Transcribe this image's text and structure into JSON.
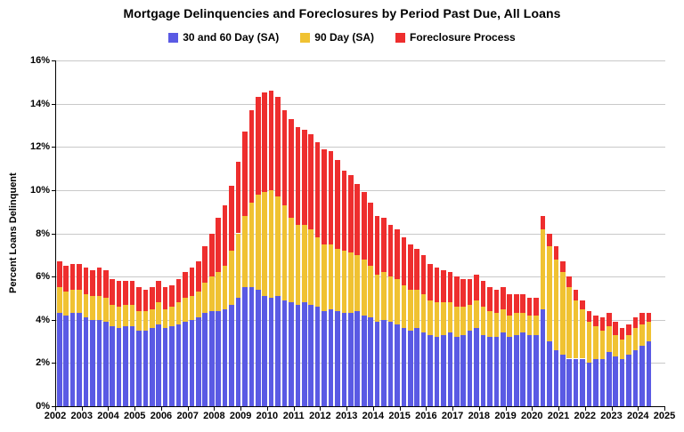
{
  "chart_data": {
    "type": "bar",
    "stacked": true,
    "title": "Mortgage Delinquencies and Foreclosures by Period Past Due, All Loans",
    "ylabel": "Percent Loans Delinquent",
    "ylim": [
      0,
      16
    ],
    "yticks": [
      0,
      2,
      4,
      6,
      8,
      10,
      12,
      14,
      16
    ],
    "ytick_suffix": "%",
    "xticks": [
      2002,
      2003,
      2004,
      2005,
      2006,
      2007,
      2008,
      2009,
      2010,
      2011,
      2012,
      2013,
      2014,
      2015,
      2016,
      2017,
      2018,
      2019,
      2020,
      2021,
      2022,
      2023,
      2024,
      2025
    ],
    "x_start_year": 2002,
    "x_axis_end_year": 2025,
    "frequency": "quarterly",
    "grid": true,
    "legend_position": "top",
    "colors": {
      "blue": "#5a5ae4",
      "yellow": "#f0c232",
      "red": "#ee2e2e",
      "gridline": "#c9c9c9",
      "axis": "#000000"
    },
    "series": [
      {
        "name": "30 and 60 Day (SA)",
        "color": "#5a5ae4",
        "values": [
          4.3,
          4.2,
          4.3,
          4.3,
          4.1,
          4.0,
          4.0,
          3.9,
          3.7,
          3.6,
          3.7,
          3.7,
          3.5,
          3.5,
          3.6,
          3.8,
          3.6,
          3.7,
          3.8,
          3.9,
          4.0,
          4.1,
          4.3,
          4.4,
          4.4,
          4.5,
          4.7,
          5.0,
          5.5,
          5.5,
          5.4,
          5.1,
          5.0,
          5.1,
          4.9,
          4.8,
          4.7,
          4.8,
          4.7,
          4.6,
          4.4,
          4.5,
          4.4,
          4.3,
          4.3,
          4.4,
          4.2,
          4.1,
          3.9,
          4.0,
          3.9,
          3.8,
          3.6,
          3.5,
          3.6,
          3.4,
          3.3,
          3.2,
          3.3,
          3.4,
          3.2,
          3.3,
          3.5,
          3.6,
          3.3,
          3.2,
          3.2,
          3.4,
          3.2,
          3.3,
          3.4,
          3.3,
          3.3,
          4.5,
          3.0,
          2.6,
          2.4,
          2.2,
          2.2,
          2.2,
          2.0,
          2.2,
          2.2,
          2.5,
          2.3,
          2.2,
          2.4,
          2.6,
          2.8,
          3.0
        ]
      },
      {
        "name": "90 Day (SA)",
        "color": "#f0c232",
        "values": [
          1.2,
          1.1,
          1.1,
          1.1,
          1.1,
          1.1,
          1.1,
          1.1,
          1.0,
          1.0,
          1.0,
          1.0,
          0.9,
          0.9,
          0.9,
          1.0,
          0.9,
          0.9,
          1.0,
          1.1,
          1.1,
          1.2,
          1.4,
          1.6,
          1.8,
          2.0,
          2.5,
          3.0,
          3.3,
          3.9,
          4.4,
          4.8,
          5.0,
          4.6,
          4.4,
          3.9,
          3.7,
          3.6,
          3.5,
          3.2,
          3.1,
          3.0,
          2.9,
          2.9,
          2.8,
          2.6,
          2.6,
          2.4,
          2.2,
          2.2,
          2.1,
          2.1,
          2.0,
          1.9,
          1.8,
          1.8,
          1.6,
          1.6,
          1.5,
          1.4,
          1.4,
          1.3,
          1.2,
          1.3,
          1.3,
          1.2,
          1.1,
          1.1,
          1.0,
          1.0,
          0.9,
          0.9,
          0.9,
          3.7,
          4.4,
          4.2,
          3.8,
          3.3,
          2.7,
          2.3,
          1.9,
          1.5,
          1.3,
          1.2,
          1.0,
          0.9,
          0.9,
          1.0,
          1.0,
          0.9
        ]
      },
      {
        "name": "Foreclosure Process",
        "color": "#ee2e2e",
        "values": [
          1.2,
          1.2,
          1.2,
          1.2,
          1.2,
          1.2,
          1.3,
          1.3,
          1.2,
          1.2,
          1.1,
          1.1,
          1.1,
          1.0,
          1.0,
          1.0,
          1.0,
          1.0,
          1.1,
          1.2,
          1.3,
          1.4,
          1.7,
          2.0,
          2.5,
          2.8,
          3.0,
          3.3,
          3.9,
          4.3,
          4.5,
          4.6,
          4.6,
          4.6,
          4.4,
          4.6,
          4.5,
          4.4,
          4.4,
          4.4,
          4.4,
          4.3,
          4.1,
          3.7,
          3.6,
          3.3,
          3.1,
          2.9,
          2.7,
          2.5,
          2.4,
          2.3,
          2.2,
          2.1,
          1.9,
          1.8,
          1.7,
          1.6,
          1.5,
          1.4,
          1.4,
          1.3,
          1.2,
          1.2,
          1.2,
          1.1,
          1.1,
          1.0,
          1.0,
          0.9,
          0.9,
          0.8,
          0.8,
          0.6,
          0.6,
          0.6,
          0.5,
          0.5,
          0.5,
          0.4,
          0.5,
          0.5,
          0.6,
          0.6,
          0.6,
          0.5,
          0.5,
          0.5,
          0.5,
          0.4
        ]
      }
    ]
  }
}
